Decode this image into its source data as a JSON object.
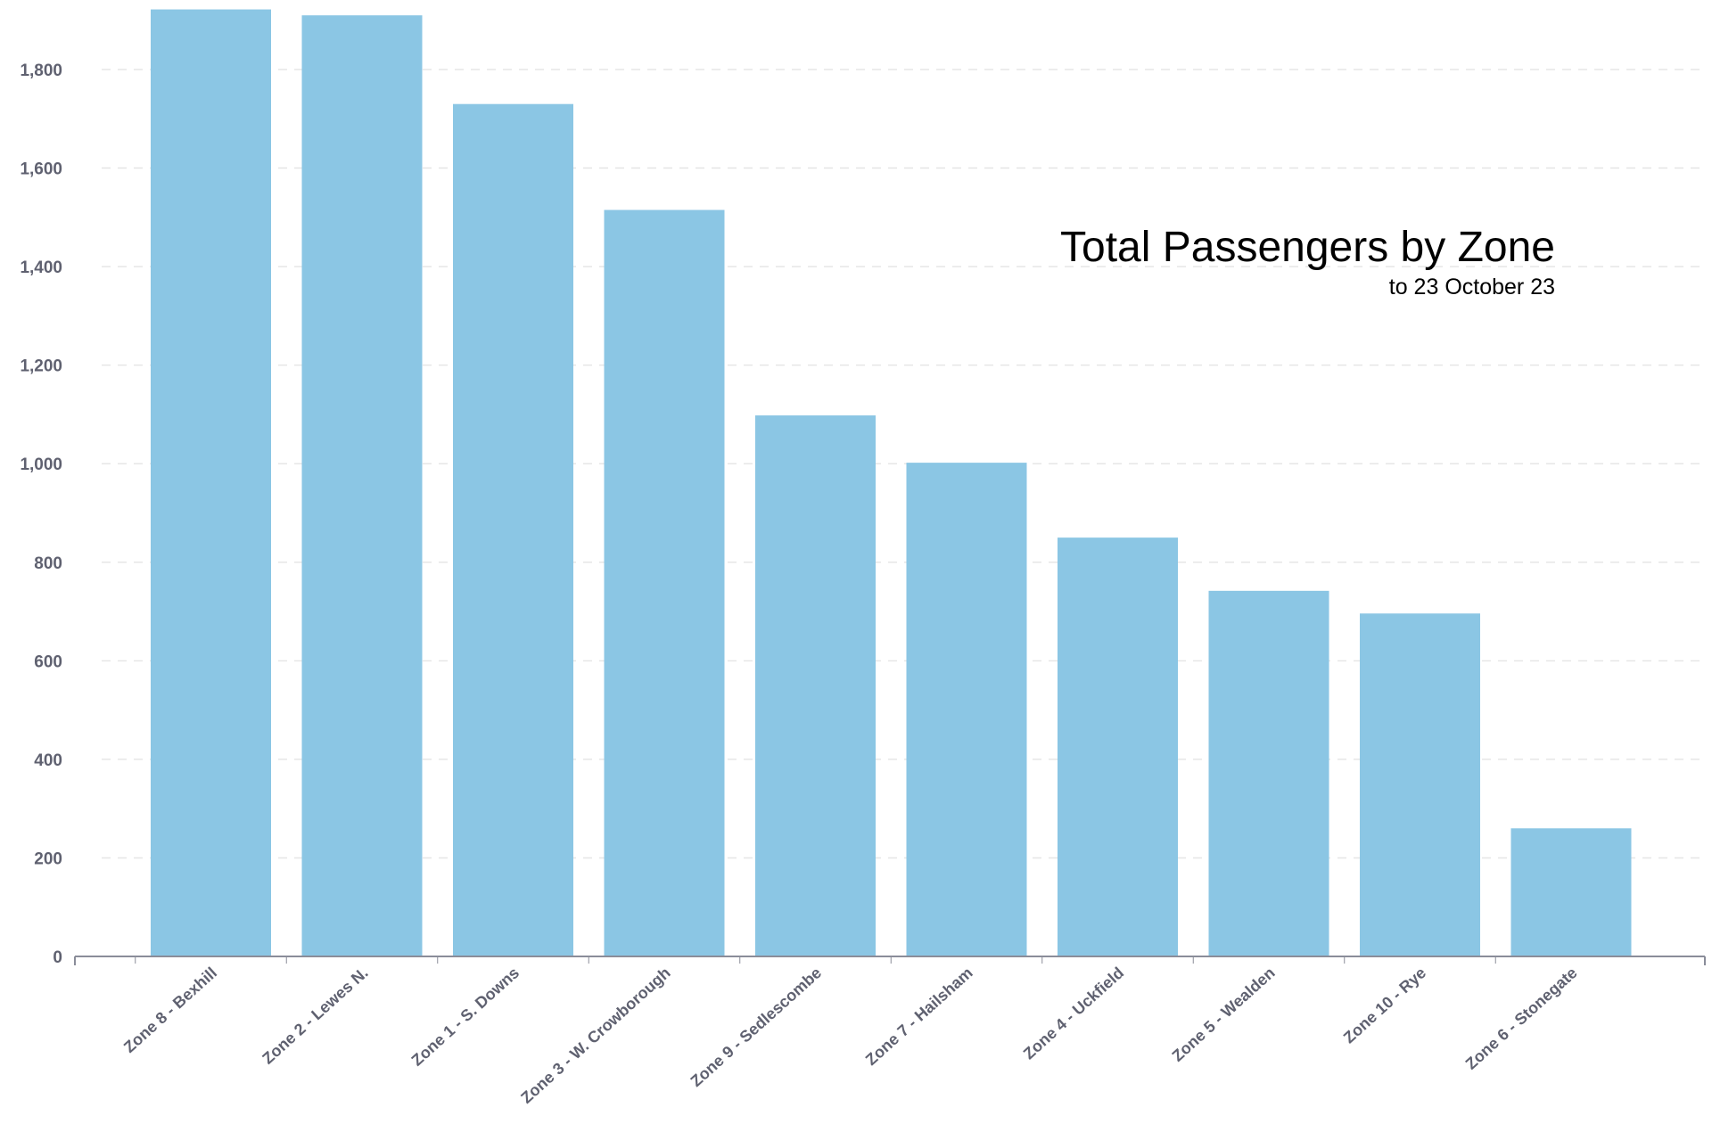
{
  "chart_data": {
    "type": "bar",
    "title": "Total Passengers by Zone",
    "subtitle": "to 23 October 23",
    "xlabel": "",
    "ylabel": "",
    "categories": [
      "Zone 8 - Bexhill",
      "Zone 2 - Lewes N.",
      "Zone 1 - S. Downs",
      "Zone 3 - W. Crowborough",
      "Zone 9 - Sedlescombe",
      "Zone 7 - Hailsham",
      "Zone 4 - Uckfield",
      "Zone 5 - Wealden",
      "Zone 10 - Rye",
      "Zone 6 - Stonegate"
    ],
    "values": [
      1922,
      1910,
      1730,
      1515,
      1098,
      1002,
      850,
      742,
      696,
      260
    ],
    "ylim": [
      0,
      1900
    ],
    "yticks": [
      0,
      200,
      400,
      600,
      800,
      1000,
      1200,
      1400,
      1600,
      1800
    ],
    "ytick_labels": [
      "0",
      "200",
      "400",
      "600",
      "800",
      "1,000",
      "1,200",
      "1,400",
      "1,600",
      "1,800"
    ],
    "grid": true,
    "legend": "none",
    "colors": {
      "bar": "#8bc6e4",
      "grid": "#e6e6e6",
      "axis": "#8a8d99",
      "tick_label": "#5f6170",
      "title": "#000000"
    }
  }
}
